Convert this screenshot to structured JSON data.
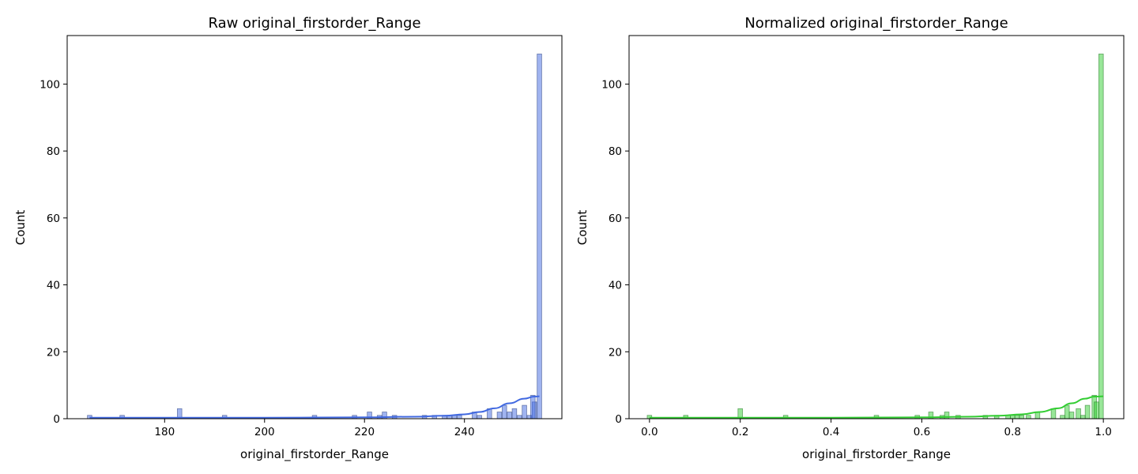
{
  "chart_data": [
    {
      "type": "bar",
      "subtype": "histogram-with-kde",
      "title": "Raw original_firstorder_Range",
      "xlabel": "original_firstorder_Range",
      "ylabel": "Count",
      "xlim": [
        160.5,
        259.5
      ],
      "ylim": [
        0,
        114.5
      ],
      "xticks": [
        180,
        200,
        220,
        240
      ],
      "yticks": [
        0,
        20,
        40,
        60,
        80,
        100
      ],
      "grid": false,
      "bar_color": "#4169e1",
      "bin_width": 0.9,
      "bins": [
        {
          "x": 165,
          "count": 1
        },
        {
          "x": 171.5,
          "count": 1
        },
        {
          "x": 183,
          "count": 3
        },
        {
          "x": 192,
          "count": 1
        },
        {
          "x": 210,
          "count": 1
        },
        {
          "x": 218,
          "count": 1
        },
        {
          "x": 221,
          "count": 2
        },
        {
          "x": 223,
          "count": 1
        },
        {
          "x": 224,
          "count": 2
        },
        {
          "x": 226,
          "count": 1
        },
        {
          "x": 232,
          "count": 1
        },
        {
          "x": 234,
          "count": 1
        },
        {
          "x": 236,
          "count": 1
        },
        {
          "x": 237,
          "count": 1
        },
        {
          "x": 238,
          "count": 1
        },
        {
          "x": 239,
          "count": 1
        },
        {
          "x": 242,
          "count": 2
        },
        {
          "x": 243,
          "count": 1
        },
        {
          "x": 245,
          "count": 3
        },
        {
          "x": 247,
          "count": 2
        },
        {
          "x": 248,
          "count": 4
        },
        {
          "x": 249,
          "count": 2
        },
        {
          "x": 250,
          "count": 3
        },
        {
          "x": 251,
          "count": 1
        },
        {
          "x": 252,
          "count": 4
        },
        {
          "x": 253,
          "count": 1
        },
        {
          "x": 254,
          "count": 5
        },
        {
          "x": 253.7,
          "count": 7
        },
        {
          "x": 255,
          "count": 109
        }
      ],
      "kde": {
        "x": [
          165,
          180,
          200,
          220,
          230,
          236,
          240,
          243,
          246,
          249,
          252,
          254,
          255
        ],
        "y": [
          0.3,
          0.3,
          0.3,
          0.4,
          0.6,
          0.9,
          1.3,
          2.0,
          3.1,
          4.6,
          6.0,
          6.6,
          6.7
        ]
      }
    },
    {
      "type": "bar",
      "subtype": "histogram-with-kde",
      "title": "Normalized original_firstorder_Range",
      "xlabel": "original_firstorder_Range",
      "ylabel": "Count",
      "xlim": [
        -0.045,
        1.045
      ],
      "ylim": [
        0,
        114.5
      ],
      "xticks": [
        0.0,
        0.2,
        0.4,
        0.6,
        0.8,
        1.0
      ],
      "xtick_labels": [
        "0.0",
        "0.2",
        "0.4",
        "0.6",
        "0.8",
        "1.0"
      ],
      "yticks": [
        0,
        20,
        40,
        60,
        80,
        100
      ],
      "grid": false,
      "bar_color": "#32cd32",
      "bin_width": 0.01,
      "bins": [
        {
          "x": 0.0,
          "count": 1
        },
        {
          "x": 0.08,
          "count": 1
        },
        {
          "x": 0.2,
          "count": 3
        },
        {
          "x": 0.3,
          "count": 1
        },
        {
          "x": 0.5,
          "count": 1
        },
        {
          "x": 0.59,
          "count": 1
        },
        {
          "x": 0.62,
          "count": 2
        },
        {
          "x": 0.645,
          "count": 1
        },
        {
          "x": 0.655,
          "count": 2
        },
        {
          "x": 0.68,
          "count": 1
        },
        {
          "x": 0.74,
          "count": 1
        },
        {
          "x": 0.765,
          "count": 1
        },
        {
          "x": 0.79,
          "count": 1
        },
        {
          "x": 0.8,
          "count": 1
        },
        {
          "x": 0.81,
          "count": 1
        },
        {
          "x": 0.82,
          "count": 1
        },
        {
          "x": 0.835,
          "count": 1
        },
        {
          "x": 0.855,
          "count": 2
        },
        {
          "x": 0.89,
          "count": 3
        },
        {
          "x": 0.91,
          "count": 1
        },
        {
          "x": 0.92,
          "count": 4
        },
        {
          "x": 0.93,
          "count": 2
        },
        {
          "x": 0.945,
          "count": 3
        },
        {
          "x": 0.955,
          "count": 1
        },
        {
          "x": 0.965,
          "count": 4
        },
        {
          "x": 0.98,
          "count": 7
        },
        {
          "x": 0.985,
          "count": 5
        },
        {
          "x": 0.995,
          "count": 109
        }
      ],
      "kde": {
        "x": [
          0.0,
          0.2,
          0.4,
          0.6,
          0.7,
          0.77,
          0.82,
          0.86,
          0.9,
          0.93,
          0.96,
          0.98,
          1.0
        ],
        "y": [
          0.3,
          0.3,
          0.3,
          0.4,
          0.6,
          0.9,
          1.3,
          2.0,
          3.1,
          4.6,
          6.0,
          6.6,
          6.7
        ]
      }
    }
  ]
}
